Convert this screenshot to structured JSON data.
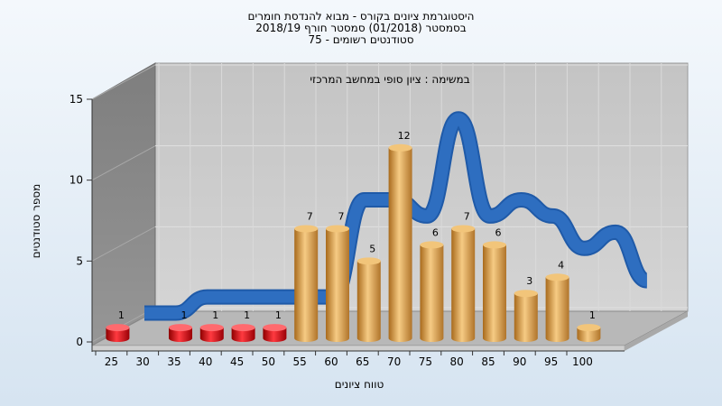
{
  "chart_data": {
    "type": "bar",
    "title_lines": [
      "היסטוגרמת ציונים בקורס - מבוא להנדסת חומרים",
      "בסמסטר  (01/2018)  סמסטר חורף  2018/19",
      "סטודנטים רשומים - 75"
    ],
    "subtitle": "במשימה : ציון סופי במחשב המרכזי",
    "xlabel": "טווח ציונים",
    "ylabel": "מספר סטודנטים",
    "categories": [
      "25",
      "30",
      "35",
      "40",
      "45",
      "50",
      "55",
      "60",
      "65",
      "70",
      "75",
      "80",
      "85",
      "90",
      "95",
      "100"
    ],
    "values": [
      1,
      0,
      1,
      1,
      1,
      1,
      7,
      7,
      5,
      12,
      6,
      7,
      6,
      3,
      4,
      1
    ],
    "bar_colors": [
      "red",
      "red",
      "red",
      "red",
      "red",
      "red",
      "orange",
      "orange",
      "orange",
      "orange",
      "orange",
      "orange",
      "orange",
      "orange",
      "orange",
      "orange"
    ],
    "ylim": [
      0,
      15
    ],
    "yticks": [
      0,
      5,
      10,
      15
    ],
    "curve_values": [
      0,
      0,
      1,
      1,
      1,
      1,
      1,
      7,
      7,
      6,
      12,
      6,
      7,
      6,
      4,
      5,
      2
    ],
    "colors": {
      "red_bar": "#e8141c",
      "orange_bar": "#e4a54a",
      "curve": "#2e6ec0",
      "plot_back": "#c9c9c9",
      "side_wall": "#8a8a8a"
    }
  }
}
